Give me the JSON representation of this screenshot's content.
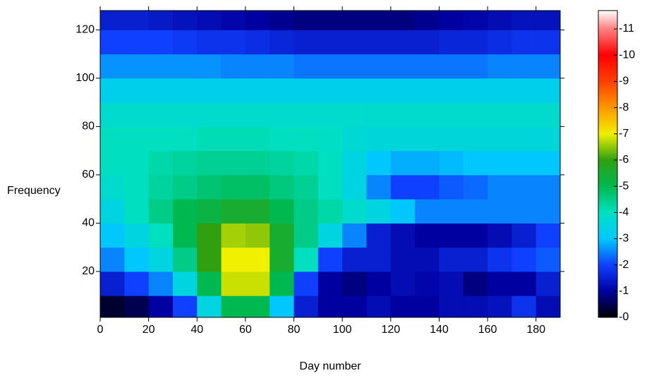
{
  "chart_data": {
    "type": "heatmap",
    "x_label": "Day number",
    "y_label": "Frequency",
    "xlim": [
      0,
      190
    ],
    "ylim": [
      1,
      128
    ],
    "xticks": [
      0,
      20,
      40,
      60,
      80,
      100,
      120,
      140,
      160,
      180
    ],
    "yticks": [
      20,
      40,
      60,
      80,
      100,
      120
    ],
    "x_edges": [
      0,
      10,
      20,
      30,
      40,
      50,
      60,
      70,
      80,
      90,
      100,
      110,
      120,
      130,
      140,
      150,
      160,
      170,
      180,
      190
    ],
    "y_edges": [
      1,
      10,
      20,
      30,
      40,
      50,
      60,
      70,
      80,
      90,
      100,
      110,
      120,
      128
    ],
    "z": [
      [
        0.3,
        0.5,
        1,
        2,
        3.5,
        5,
        5,
        3,
        1.5,
        1,
        1,
        1.2,
        1,
        1,
        1.2,
        1.2,
        1.3,
        1.8,
        1.2
      ],
      [
        1.5,
        2,
        2.5,
        3.5,
        5,
        6.8,
        6.8,
        5,
        2,
        1,
        0.8,
        1,
        1.2,
        1.1,
        1.2,
        0.8,
        1,
        1,
        1.5
      ],
      [
        2.5,
        3,
        3.5,
        4.5,
        6,
        7,
        7,
        5.5,
        4,
        2,
        1.5,
        1.5,
        1.2,
        1.2,
        1.5,
        1.5,
        1.8,
        2,
        2.2
      ],
      [
        3,
        3.5,
        4,
        5,
        6,
        6.6,
        6.5,
        5.5,
        4.5,
        3.5,
        2.5,
        1.5,
        1.2,
        1,
        1,
        1,
        1.2,
        1.5,
        2
      ],
      [
        3.5,
        4,
        4.5,
        5,
        5.2,
        5.5,
        5.5,
        5,
        4.5,
        4.2,
        3.8,
        3.5,
        3,
        2.5,
        2.5,
        2.5,
        2.5,
        2.5,
        2.5
      ],
      [
        3.8,
        4,
        4.3,
        4.5,
        4.7,
        4.8,
        4.8,
        4.6,
        4.4,
        4,
        3.5,
        2.5,
        2,
        2,
        2.2,
        2.3,
        2.5,
        2.5,
        2.5
      ],
      [
        4,
        4,
        4.2,
        4.3,
        4.4,
        4.4,
        4.4,
        4.3,
        4.2,
        4,
        3.5,
        3,
        2.8,
        2.8,
        2.9,
        3,
        3,
        3,
        3
      ],
      [
        4,
        4,
        4,
        4,
        4.1,
        4.1,
        4.1,
        4,
        4,
        3.9,
        3.7,
        3.6,
        3.6,
        3.6,
        3.6,
        3.6,
        3.6,
        3.6,
        3.6
      ],
      [
        3.8,
        3.8,
        3.8,
        3.8,
        3.8,
        3.8,
        3.8,
        3.8,
        3.8,
        3.8,
        3.8,
        3.8,
        3.8,
        3.8,
        3.8,
        3.8,
        3.8,
        3.8,
        3.8
      ],
      [
        3.3,
        3.3,
        3.3,
        3.3,
        3.3,
        3.3,
        3.3,
        3.3,
        3.3,
        3.3,
        3.3,
        3.3,
        3.3,
        3.3,
        3.3,
        3.3,
        3.3,
        3.3,
        3.3
      ],
      [
        2.6,
        2.6,
        2.6,
        2.6,
        2.6,
        2.5,
        2.5,
        2.5,
        2.4,
        2.4,
        2.4,
        2.4,
        2.4,
        2.4,
        2.4,
        2.4,
        2.5,
        2.5,
        2.5
      ],
      [
        2,
        2,
        2,
        1.9,
        1.8,
        1.8,
        1.7,
        1.6,
        1.5,
        1.5,
        1.5,
        1.5,
        1.5,
        1.5,
        1.6,
        1.6,
        1.7,
        1.8,
        1.8
      ],
      [
        1.5,
        1.5,
        1.4,
        1.3,
        1.2,
        1.1,
        1,
        0.9,
        0.8,
        0.8,
        0.8,
        0.8,
        0.8,
        0.9,
        1,
        1.1,
        1.2,
        1.3,
        1.3
      ]
    ],
    "zlim": [
      0,
      11.7
    ],
    "zticks": [
      {
        "value": 0,
        "label": "-0"
      },
      {
        "value": 1,
        "label": "-1"
      },
      {
        "value": 2,
        "label": "-2"
      },
      {
        "value": 3,
        "label": "-3"
      },
      {
        "value": 4,
        "label": "-4"
      },
      {
        "value": 5,
        "label": "-5"
      },
      {
        "value": 6,
        "label": "-6"
      },
      {
        "value": 7,
        "label": "-7"
      },
      {
        "value": 8,
        "label": "-8"
      },
      {
        "value": 9,
        "label": "-9"
      },
      {
        "value": 10,
        "label": "-10"
      },
      {
        "value": 11,
        "label": "-11"
      }
    ],
    "colorscale": [
      {
        "value": 0,
        "color": "#000000"
      },
      {
        "value": 1,
        "color": "#0000a0"
      },
      {
        "value": 2,
        "color": "#1040ff"
      },
      {
        "value": 3,
        "color": "#00c8ff"
      },
      {
        "value": 4,
        "color": "#00e0c0"
      },
      {
        "value": 5,
        "color": "#00b850"
      },
      {
        "value": 6,
        "color": "#30a010"
      },
      {
        "value": 7,
        "color": "#f0f000"
      },
      {
        "value": 8,
        "color": "#ff9600"
      },
      {
        "value": 9,
        "color": "#ff4000"
      },
      {
        "value": 10,
        "color": "#ff0000"
      },
      {
        "value": 11,
        "color": "#ff8080"
      },
      {
        "value": 11.7,
        "color": "#ffffff"
      }
    ]
  }
}
